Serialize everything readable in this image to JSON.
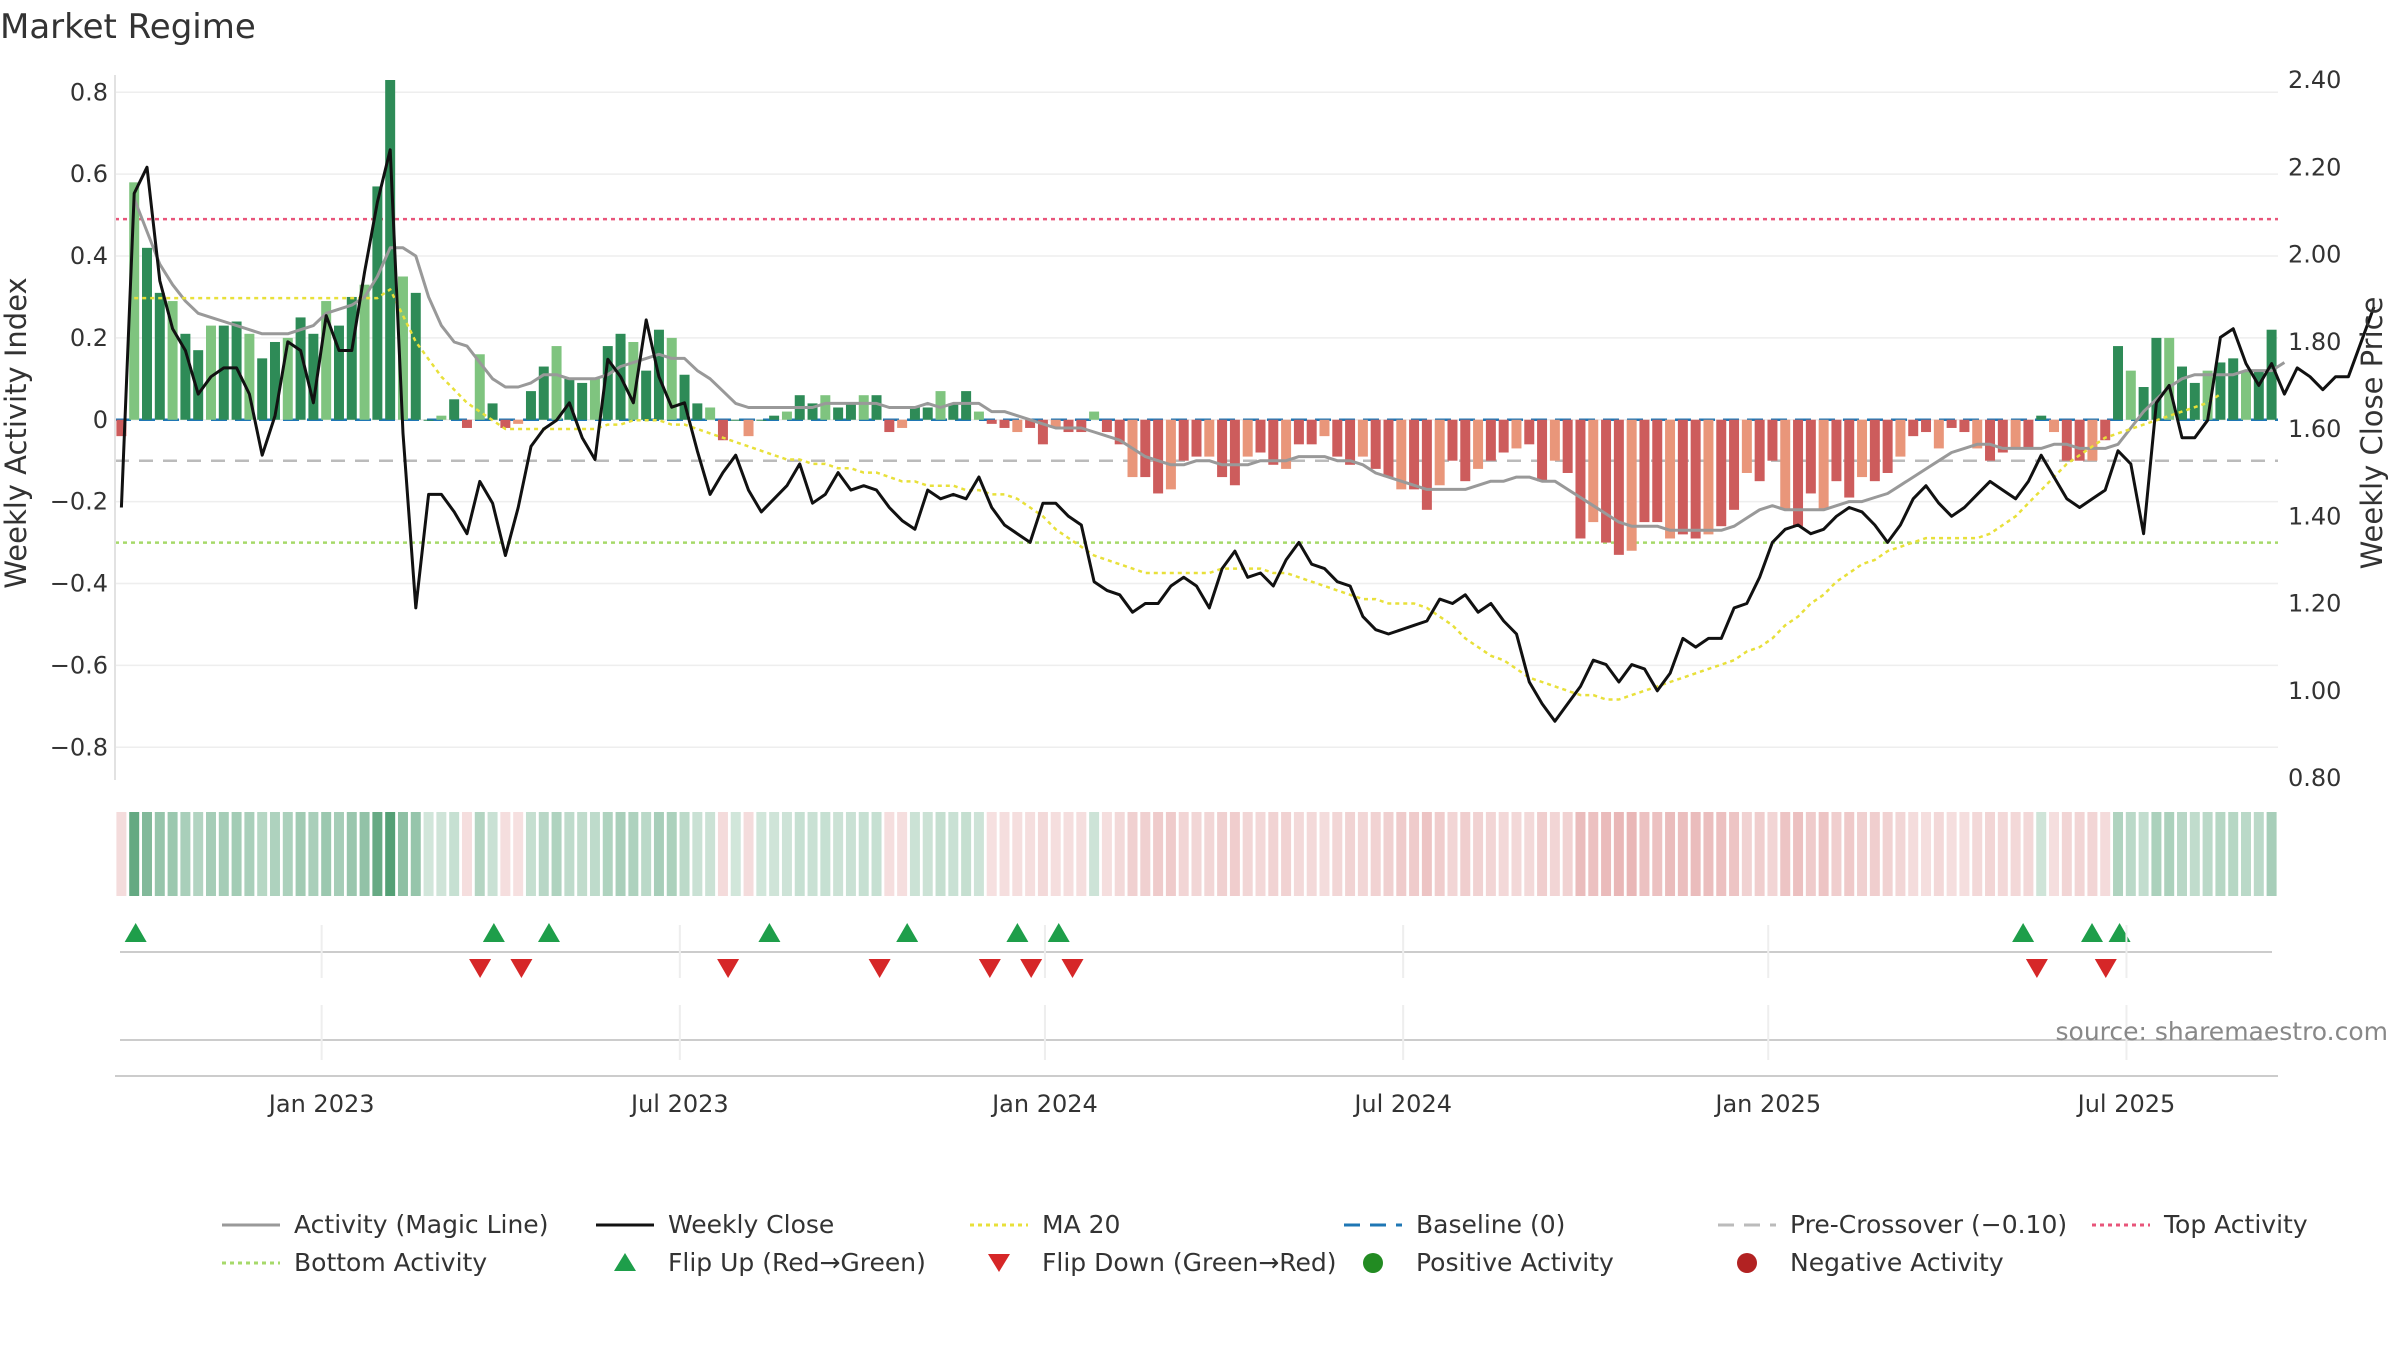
{
  "chart_data": {
    "type": "bar",
    "title": "Market Regime",
    "ylabel_left": "Weekly Activity Index",
    "ylabel_right": "Weekly Close Price",
    "left_ticks": [
      "0.8",
      "0.6",
      "0.4",
      "0.2",
      "0",
      "−0.2",
      "−0.4",
      "−0.6",
      "−0.8"
    ],
    "left_tick_values": [
      0.8,
      0.6,
      0.4,
      0.2,
      0,
      -0.2,
      -0.4,
      -0.6,
      -0.8
    ],
    "left_ylim": [
      -0.88,
      0.83
    ],
    "right_ticks": [
      "2.40",
      "2.20",
      "2.00",
      "1.80",
      "1.60",
      "1.40",
      "1.20",
      "1.00",
      "0.80"
    ],
    "right_tick_values": [
      2.4,
      2.2,
      2.0,
      1.8,
      1.6,
      1.4,
      1.2,
      1.0,
      0.8
    ],
    "right_ylim": [
      0.8,
      2.4
    ],
    "x_tick_labels": [
      "Jan 2023",
      "Jul 2023",
      "Jan 2024",
      "Jul 2024",
      "Jan 2025",
      "Jul 2025"
    ],
    "x_tick_weeks": [
      15,
      41,
      67.5,
      93.5,
      120,
      146
    ],
    "week_range": [
      0,
      157
    ],
    "reference_lines": {
      "top_activity": 0.49,
      "bottom_activity": -0.3,
      "pre_crossover": -0.1,
      "baseline": 0
    },
    "activity_bars": [
      -0.04,
      0.58,
      0.42,
      0.31,
      0.29,
      0.21,
      0.17,
      0.23,
      0.23,
      0.24,
      0.21,
      0.15,
      0.19,
      0.2,
      0.25,
      0.21,
      0.29,
      0.23,
      0.3,
      0.33,
      0.57,
      0.83,
      0.35,
      0.31,
      0.0,
      0.01,
      0.05,
      -0.02,
      0.16,
      0.04,
      -0.02,
      -0.01,
      0.07,
      0.13,
      0.18,
      0.1,
      0.09,
      0.1,
      0.18,
      0.21,
      0.19,
      0.12,
      0.22,
      0.2,
      0.11,
      0.04,
      0.03,
      -0.05,
      0.0,
      -0.04,
      0.0,
      0.01,
      0.02,
      0.06,
      0.04,
      0.06,
      0.03,
      0.04,
      0.06,
      0.06,
      -0.03,
      -0.02,
      0.03,
      0.03,
      0.07,
      0.04,
      0.07,
      0.02,
      -0.01,
      -0.02,
      -0.03,
      -0.02,
      -0.06,
      -0.02,
      -0.03,
      -0.03,
      0.02,
      -0.03,
      -0.06,
      -0.14,
      -0.14,
      -0.18,
      -0.17,
      -0.1,
      -0.09,
      -0.09,
      -0.14,
      -0.16,
      -0.09,
      -0.08,
      -0.11,
      -0.12,
      -0.06,
      -0.06,
      -0.04,
      -0.09,
      -0.11,
      -0.09,
      -0.12,
      -0.14,
      -0.17,
      -0.17,
      -0.22,
      -0.16,
      -0.1,
      -0.15,
      -0.12,
      -0.1,
      -0.08,
      -0.07,
      -0.06,
      -0.15,
      -0.1,
      -0.13,
      -0.29,
      -0.25,
      -0.3,
      -0.33,
      -0.32,
      -0.25,
      -0.25,
      -0.29,
      -0.28,
      -0.29,
      -0.28,
      -0.26,
      -0.22,
      -0.13,
      -0.15,
      -0.1,
      -0.22,
      -0.26,
      -0.18,
      -0.22,
      -0.15,
      -0.19,
      -0.14,
      -0.15,
      -0.13,
      -0.09,
      -0.04,
      -0.03,
      -0.07,
      -0.02,
      -0.03,
      -0.07,
      -0.1,
      -0.08,
      -0.07,
      -0.07,
      0.01,
      -0.03,
      -0.1,
      -0.1,
      -0.1,
      -0.05,
      0.18,
      0.12,
      0.08,
      0.2,
      0.2,
      0.13,
      0.09,
      0.12,
      0.14,
      0.15,
      0.12,
      0.12,
      0.22
    ],
    "bar_color_rule": "positive = green shades, negative = red/salmon shades",
    "series": [
      {
        "name": "Weekly Close",
        "axis": "right",
        "color": "#111111",
        "values": [
          1.42,
          2.14,
          2.2,
          1.94,
          1.83,
          1.78,
          1.68,
          1.72,
          1.74,
          1.74,
          1.68,
          1.54,
          1.63,
          1.8,
          1.78,
          1.66,
          1.86,
          1.78,
          1.78,
          1.96,
          2.12,
          2.24,
          1.59,
          1.19,
          1.45,
          1.45,
          1.41,
          1.36,
          1.48,
          1.43,
          1.31,
          1.42,
          1.56,
          1.6,
          1.62,
          1.66,
          1.58,
          1.53,
          1.76,
          1.72,
          1.66,
          1.85,
          1.72,
          1.65,
          1.66,
          1.55,
          1.45,
          1.5,
          1.54,
          1.46,
          1.41,
          1.44,
          1.47,
          1.52,
          1.43,
          1.45,
          1.5,
          1.46,
          1.47,
          1.46,
          1.42,
          1.39,
          1.37,
          1.46,
          1.44,
          1.45,
          1.44,
          1.49,
          1.42,
          1.38,
          1.36,
          1.34,
          1.43,
          1.43,
          1.4,
          1.38,
          1.25,
          1.23,
          1.22,
          1.18,
          1.2,
          1.2,
          1.24,
          1.26,
          1.24,
          1.19,
          1.28,
          1.32,
          1.26,
          1.27,
          1.24,
          1.3,
          1.34,
          1.29,
          1.28,
          1.25,
          1.24,
          1.17,
          1.14,
          1.13,
          1.14,
          1.15,
          1.16,
          1.21,
          1.2,
          1.22,
          1.18,
          1.2,
          1.16,
          1.13,
          1.02,
          0.97,
          0.93,
          0.97,
          1.01,
          1.07,
          1.06,
          1.02,
          1.06,
          1.05,
          1.0,
          1.04,
          1.12,
          1.1,
          1.12,
          1.12,
          1.19,
          1.2,
          1.26,
          1.34,
          1.37,
          1.38,
          1.36,
          1.37,
          1.4,
          1.42,
          1.41,
          1.38,
          1.34,
          1.38,
          1.44,
          1.47,
          1.43,
          1.4,
          1.42,
          1.45,
          1.48,
          1.46,
          1.44,
          1.48,
          1.54,
          1.49,
          1.44,
          1.42,
          1.44,
          1.46,
          1.55,
          1.52,
          1.36,
          1.66,
          1.7,
          1.58,
          1.58,
          1.62,
          1.81,
          1.83,
          1.75,
          1.7,
          1.75,
          1.68,
          1.74,
          1.72,
          1.69,
          1.72,
          1.72,
          1.8,
          1.88
        ],
        "note": "plotted on secondary axis; values below 0.80 are drawn at the visible minimum"
      },
      {
        "name": "Activity (Magic Line)",
        "axis": "left",
        "color": "#999999",
        "values": [
          null,
          0.54,
          0.46,
          0.38,
          0.33,
          0.29,
          0.26,
          0.25,
          0.24,
          0.23,
          0.22,
          0.21,
          0.21,
          0.21,
          0.22,
          0.23,
          0.26,
          0.27,
          0.28,
          0.3,
          0.35,
          0.42,
          0.42,
          0.4,
          0.3,
          0.23,
          0.19,
          0.18,
          0.14,
          0.1,
          0.08,
          0.08,
          0.09,
          0.11,
          0.11,
          0.1,
          0.1,
          0.1,
          0.11,
          0.13,
          0.14,
          0.15,
          0.16,
          0.15,
          0.15,
          0.12,
          0.1,
          0.07,
          0.04,
          0.03,
          0.03,
          0.03,
          0.03,
          0.03,
          0.03,
          0.04,
          0.04,
          0.04,
          0.04,
          0.04,
          0.03,
          0.03,
          0.03,
          0.04,
          0.03,
          0.04,
          0.04,
          0.04,
          0.02,
          0.02,
          0.01,
          0.0,
          -0.01,
          -0.02,
          -0.02,
          -0.02,
          -0.03,
          -0.04,
          -0.05,
          -0.07,
          -0.09,
          -0.1,
          -0.11,
          -0.11,
          -0.1,
          -0.1,
          -0.11,
          -0.11,
          -0.11,
          -0.1,
          -0.1,
          -0.1,
          -0.09,
          -0.09,
          -0.09,
          -0.1,
          -0.1,
          -0.11,
          -0.13,
          -0.14,
          -0.15,
          -0.16,
          -0.17,
          -0.17,
          -0.17,
          -0.17,
          -0.16,
          -0.15,
          -0.15,
          -0.14,
          -0.14,
          -0.15,
          -0.15,
          -0.17,
          -0.19,
          -0.21,
          -0.23,
          -0.25,
          -0.26,
          -0.26,
          -0.26,
          -0.27,
          -0.27,
          -0.27,
          -0.27,
          -0.27,
          -0.26,
          -0.24,
          -0.22,
          -0.21,
          -0.22,
          -0.22,
          -0.22,
          -0.22,
          -0.21,
          -0.2,
          -0.2,
          -0.19,
          -0.18,
          -0.16,
          -0.14,
          -0.12,
          -0.1,
          -0.08,
          -0.07,
          -0.06,
          -0.06,
          -0.07,
          -0.07,
          -0.07,
          -0.07,
          -0.06,
          -0.06,
          -0.07,
          -0.07,
          -0.07,
          -0.06,
          -0.02,
          0.02,
          0.05,
          0.08,
          0.1,
          0.11,
          0.11,
          0.11,
          0.11,
          0.12,
          0.12,
          0.12,
          0.14
        ]
      },
      {
        "name": "MA 20",
        "axis": "right",
        "color": "#e8e03a",
        "values": [
          null,
          1.9,
          1.9,
          1.9,
          1.9,
          1.9,
          1.9,
          1.9,
          1.9,
          1.9,
          1.9,
          1.9,
          1.9,
          1.9,
          1.9,
          1.9,
          1.9,
          1.9,
          1.9,
          1.9,
          1.9,
          1.92,
          1.86,
          1.8,
          1.76,
          1.72,
          1.69,
          1.66,
          1.64,
          1.62,
          1.6,
          1.6,
          1.6,
          1.6,
          1.6,
          1.6,
          1.6,
          1.6,
          1.61,
          1.61,
          1.62,
          1.62,
          1.62,
          1.61,
          1.61,
          1.6,
          1.59,
          1.58,
          1.57,
          1.56,
          1.55,
          1.54,
          1.53,
          1.53,
          1.52,
          1.52,
          1.51,
          1.51,
          1.5,
          1.5,
          1.49,
          1.48,
          1.48,
          1.47,
          1.47,
          1.47,
          1.46,
          1.46,
          1.45,
          1.45,
          1.44,
          1.42,
          1.4,
          1.37,
          1.35,
          1.33,
          1.31,
          1.3,
          1.29,
          1.28,
          1.27,
          1.27,
          1.27,
          1.27,
          1.27,
          1.27,
          1.28,
          1.28,
          1.28,
          1.28,
          1.27,
          1.27,
          1.26,
          1.25,
          1.24,
          1.23,
          1.22,
          1.21,
          1.21,
          1.2,
          1.2,
          1.2,
          1.19,
          1.17,
          1.15,
          1.12,
          1.1,
          1.08,
          1.07,
          1.05,
          1.03,
          1.02,
          1.01,
          1.0,
          0.99,
          0.99,
          0.98,
          0.98,
          0.99,
          1.0,
          1.01,
          1.02,
          1.03,
          1.04,
          1.05,
          1.06,
          1.07,
          1.09,
          1.1,
          1.12,
          1.15,
          1.17,
          1.2,
          1.22,
          1.25,
          1.27,
          1.29,
          1.3,
          1.32,
          1.33,
          1.34,
          1.35,
          1.35,
          1.35,
          1.35,
          1.35,
          1.36,
          1.38,
          1.4,
          1.43,
          1.46,
          1.49,
          1.52,
          1.54,
          1.56,
          1.58,
          1.59,
          1.6,
          1.61,
          1.62,
          1.63,
          1.64,
          1.65,
          1.66,
          1.68
        ]
      }
    ],
    "flip_up_weeks": [
      1.5,
      27.5,
      31.5,
      47.5,
      57.5,
      65.5,
      68.5,
      138.5,
      143.5,
      145.5
    ],
    "flip_down_weeks": [
      26.5,
      29.5,
      44.5,
      55.5,
      63.5,
      66.5,
      69.5,
      139.5,
      144.5
    ],
    "legend": [
      {
        "label": "Activity (Magic Line)",
        "kind": "line",
        "color": "#999999"
      },
      {
        "label": "Weekly Close",
        "kind": "line",
        "color": "#111111"
      },
      {
        "label": "MA 20",
        "kind": "dotted",
        "color": "#e8e03a"
      },
      {
        "label": "Baseline (0)",
        "kind": "dashed",
        "color": "#1f77b4"
      },
      {
        "label": "Pre-Crossover (−0.10)",
        "kind": "dashed",
        "color": "#bbbbbb"
      },
      {
        "label": "Top Activity",
        "kind": "dotted",
        "color": "#e8557a"
      },
      {
        "label": "Bottom Activity",
        "kind": "dotted",
        "color": "#a6d96a"
      },
      {
        "label": "Flip Up (Red→Green)",
        "kind": "triangle-up",
        "color": "#1e9e4a"
      },
      {
        "label": "Flip Down (Green→Red)",
        "kind": "triangle-down",
        "color": "#d62728"
      },
      {
        "label": "Positive Activity",
        "kind": "circle",
        "color": "#228b22"
      },
      {
        "label": "Negative Activity",
        "kind": "circle",
        "color": "#b22222"
      }
    ],
    "source_text": "source: sharemaestro.com",
    "colors": {
      "green_dark": "#2e8b57",
      "green_light": "#7fc47f",
      "red_dark": "#cd5c5c",
      "red_light": "#e9967a",
      "grid": "#eeeeee"
    }
  }
}
